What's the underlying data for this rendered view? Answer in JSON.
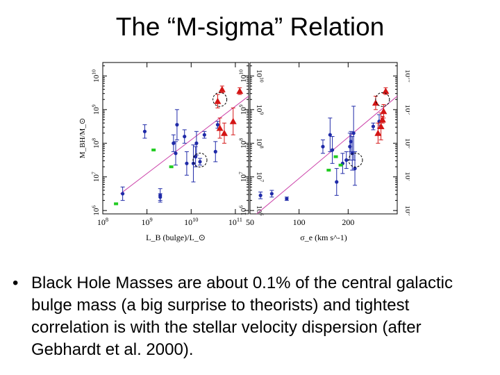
{
  "slide": {
    "title": "The “M-sigma” Relation",
    "bullet_symbol": "•",
    "bullet_text": "Black Hole Masses are about 0.1% of the central galactic bulge mass (a big surprise to theorists) and tightest correlation is with the stellar velocity dispersion (after Gebhardt et al. 2000)."
  },
  "colors": {
    "blue": "#1f2aa8",
    "red": "#d41515",
    "green": "#22cc22",
    "fit_line": "#cc44aa"
  },
  "chart_data": [
    {
      "type": "scatter",
      "title": "",
      "xlabel": "L_B (bulge)/L_⊙",
      "ylabel": "M_BH/M_⊙",
      "xscale": "log",
      "yscale": "log",
      "xlim": [
        8,
        11.3
      ],
      "ylim": [
        5.9,
        10.4
      ],
      "xticks": [
        8,
        9,
        10,
        11
      ],
      "xticklabels": [
        "10^8",
        "10^9",
        "10^10",
        "10^11"
      ],
      "yticks": [
        6,
        7,
        8,
        9,
        10
      ],
      "yticklabels": [
        "10^6",
        "10^7",
        "10^8",
        "10^9",
        "10^10"
      ],
      "fit_line": [
        [
          8.4,
          6.5
        ],
        [
          11.3,
          9.4
        ]
      ],
      "series": [
        {
          "name": "blue",
          "marker": "circle",
          "points": [
            {
              "x": 8.45,
              "y": 6.5,
              "e": 0.2
            },
            {
              "x": 8.95,
              "y": 8.35,
              "e": 0.2
            },
            {
              "x": 9.3,
              "y": 6.45,
              "e": 0.2
            },
            {
              "x": 9.3,
              "y": 6.4,
              "e": 0.1
            },
            {
              "x": 9.6,
              "y": 8.0,
              "e": 0.25
            },
            {
              "x": 9.65,
              "y": 7.7,
              "e": 0.35
            },
            {
              "x": 9.68,
              "y": 8.55,
              "e": 0.45
            },
            {
              "x": 9.85,
              "y": 8.2,
              "e": 0.2
            },
            {
              "x": 9.9,
              "y": 7.4,
              "e": 0.35
            },
            {
              "x": 10.05,
              "y": 7.4,
              "e": 0.55
            },
            {
              "x": 10.1,
              "y": 7.6,
              "e": 0.3
            },
            {
              "x": 10.12,
              "y": 8.0,
              "e": 0.35
            },
            {
              "x": 10.2,
              "y": 7.45,
              "e": 0.1
            },
            {
              "x": 10.3,
              "y": 8.25,
              "e": 0.1
            },
            {
              "x": 10.55,
              "y": 7.75,
              "e": 0.3
            },
            {
              "x": 10.6,
              "y": 8.55,
              "e": 0.1
            }
          ]
        },
        {
          "name": "red",
          "marker": "triangle",
          "points": [
            {
              "x": 10.6,
              "y": 9.25,
              "e": 0.2
            },
            {
              "x": 10.7,
              "y": 9.6,
              "e": 0.1
            },
            {
              "x": 10.65,
              "y": 8.45,
              "e": 0.3
            },
            {
              "x": 10.75,
              "y": 8.3,
              "e": 0.3
            },
            {
              "x": 10.95,
              "y": 8.65,
              "e": 0.4
            },
            {
              "x": 11.1,
              "y": 9.55,
              "e": 0.1
            }
          ]
        },
        {
          "name": "green",
          "marker": "square",
          "points": [
            {
              "x": 8.3,
              "y": 6.2
            },
            {
              "x": 9.15,
              "y": 7.8
            },
            {
              "x": 9.55,
              "y": 7.3
            }
          ]
        }
      ],
      "circled": [
        {
          "x": 10.65,
          "y": 9.3
        },
        {
          "x": 10.2,
          "y": 7.5
        }
      ]
    },
    {
      "type": "scatter",
      "title": "",
      "xlabel": "σ_e (km s^-1)",
      "ylabel": "",
      "xscale": "log",
      "yscale": "log",
      "xlim": [
        50,
        400
      ],
      "ylim": [
        5.9,
        10.4
      ],
      "xticks": [
        50,
        100,
        200
      ],
      "xticklabels": [
        "50",
        "100",
        "200"
      ],
      "yticks": [
        6,
        7,
        8,
        9,
        10
      ],
      "yticklabels": [
        "10^6",
        "10^7",
        "10^8",
        "10^9",
        "10^10"
      ],
      "fit_line": [
        [
          55,
          5.9
        ],
        [
          400,
          9.4
        ]
      ],
      "series": [
        {
          "name": "blue",
          "marker": "circle",
          "points": [
            {
              "x": 58,
              "y": 6.45,
              "e": 0.1
            },
            {
              "x": 68,
              "y": 6.5,
              "e": 0.1
            },
            {
              "x": 84,
              "y": 6.35,
              "e": 0.05
            },
            {
              "x": 140,
              "y": 7.9,
              "e": 0.2
            },
            {
              "x": 155,
              "y": 8.25,
              "e": 0.5
            },
            {
              "x": 160,
              "y": 7.8,
              "e": 0.4
            },
            {
              "x": 170,
              "y": 6.85,
              "e": 0.4
            },
            {
              "x": 185,
              "y": 7.4,
              "e": 0.3
            },
            {
              "x": 195,
              "y": 7.5,
              "e": 0.25
            },
            {
              "x": 205,
              "y": 7.9,
              "e": 0.4
            },
            {
              "x": 208,
              "y": 8.05,
              "e": 0.3
            },
            {
              "x": 212,
              "y": 7.7,
              "e": 0.5
            },
            {
              "x": 216,
              "y": 8.3,
              "e": 0.8
            },
            {
              "x": 220,
              "y": 7.25,
              "e": 0.5
            },
            {
              "x": 285,
              "y": 8.5,
              "e": 0.1
            },
            {
              "x": 310,
              "y": 8.65,
              "e": 0.2
            }
          ]
        },
        {
          "name": "red",
          "marker": "triangle",
          "points": [
            {
              "x": 295,
              "y": 9.2,
              "e": 0.2
            },
            {
              "x": 305,
              "y": 8.3,
              "e": 0.3
            },
            {
              "x": 318,
              "y": 8.5,
              "e": 0.4
            },
            {
              "x": 330,
              "y": 8.95,
              "e": 0.2
            },
            {
              "x": 325,
              "y": 8.7,
              "e": 0.1
            },
            {
              "x": 340,
              "y": 9.55,
              "e": 0.1
            }
          ]
        },
        {
          "name": "green",
          "marker": "square",
          "points": [
            {
              "x": 152,
              "y": 7.2
            },
            {
              "x": 168,
              "y": 7.6
            },
            {
              "x": 180,
              "y": 7.35
            }
          ]
        }
      ],
      "circled": [
        {
          "x": 325,
          "y": 9.3
        },
        {
          "x": 222,
          "y": 7.5
        }
      ]
    }
  ]
}
